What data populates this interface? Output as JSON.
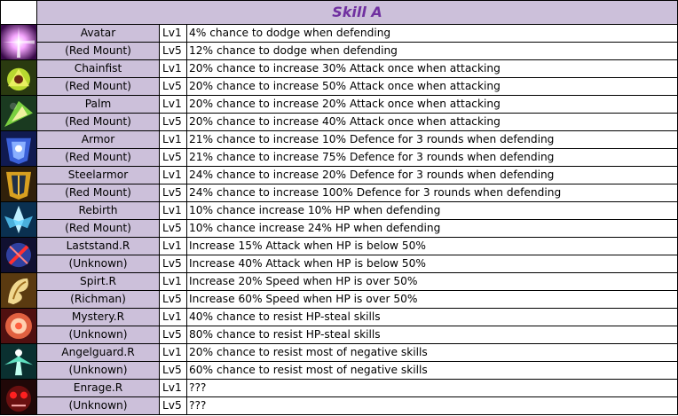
{
  "title": "Skill A",
  "skills": [
    {
      "icon": "avatar-icon",
      "name": "Avatar",
      "source": "(Red Mount)",
      "lv1": "Lv1",
      "desc1": "4% chance to dodge when defending",
      "lv5": "Lv5",
      "desc5": "12% chance to dodge when defending"
    },
    {
      "icon": "chainfist-icon",
      "name": "Chainfist",
      "source": "(Red Mount)",
      "lv1": "Lv1",
      "desc1": "20% chance to increase 30% Attack once when attacking",
      "lv5": "Lv5",
      "desc5": "20% chance to increase 50% Attack once when attacking"
    },
    {
      "icon": "palm-icon",
      "name": "Palm",
      "source": "(Red Mount)",
      "lv1": "Lv1",
      "desc1": "20% chance to increase 20% Attack once when attacking",
      "lv5": "Lv5",
      "desc5": "20% chance to increase 40% Attack once when attacking"
    },
    {
      "icon": "armor-icon",
      "name": "Armor",
      "source": "(Red Mount)",
      "lv1": "Lv1",
      "desc1": "21% chance to increase 10% Defence for 3 rounds when defending",
      "lv5": "Lv5",
      "desc5": "21% chance to increase 75% Defence for 3 rounds when defending"
    },
    {
      "icon": "steelarmor-icon",
      "name": "Steelarmor",
      "source": "(Red Mount)",
      "lv1": "Lv1",
      "desc1": "24% chance to increase 20% Defence for 3 rounds when defending",
      "lv5": "Lv5",
      "desc5": "24% chance to increase 100% Defence for 3 rounds when defending"
    },
    {
      "icon": "rebirth-icon",
      "name": "Rebirth",
      "source": "(Red Mount)",
      "lv1": "Lv1",
      "desc1": "10% chance increase 10% HP when defending",
      "lv5": "Lv5",
      "desc5": "10% chance increase 24% HP when defending"
    },
    {
      "icon": "laststand-icon",
      "name": "Laststand.R",
      "source": "(Unknown)",
      "lv1": "Lv1",
      "desc1": "Increase 15% Attack when HP is below 50%",
      "lv5": "Lv5",
      "desc5": "Increase 40% Attack when HP is below 50%"
    },
    {
      "icon": "spirit-icon",
      "name": "Spirt.R",
      "source": "(Richman)",
      "lv1": "Lv1",
      "desc1": "Increase 20% Speed when HP is over 50%",
      "lv5": "Lv5",
      "desc5": "Increase 60% Speed when HP is over 50%"
    },
    {
      "icon": "mystery-icon",
      "name": "Mystery.R",
      "source": "(Unknown)",
      "lv1": "Lv1",
      "desc1": "40% chance to resist HP-steal skills",
      "lv5": "Lv5",
      "desc5": "80% chance to resist HP-steal skills"
    },
    {
      "icon": "angelguard-icon",
      "name": "Angelguard.R",
      "source": "(Unknown)",
      "lv1": "Lv1",
      "desc1": "20% chance to resist most of negative skills",
      "lv5": "Lv5",
      "desc5": "60% chance to resist most of negative skills"
    },
    {
      "icon": "enrage-icon",
      "name": "Enrage.R",
      "source": "(Unknown)",
      "lv1": "Lv1",
      "desc1": "???",
      "lv5": "Lv5",
      "desc5": "???"
    }
  ],
  "colors": {
    "title_bg": "#ccc0da",
    "title_text": "#7030a0",
    "name_bg": "#ccc0da"
  }
}
